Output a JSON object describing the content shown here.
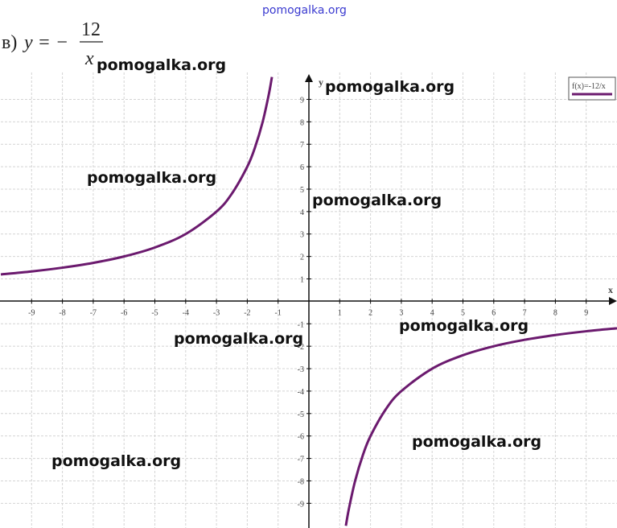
{
  "chart_data": {
    "type": "line",
    "title_prefix": "в)",
    "equation_lhs": "y = −",
    "numerator": "12",
    "denominator": "x",
    "watermark": "pomogalka.org",
    "x_label": "x",
    "y_label": "y",
    "x": [
      -10,
      -9,
      -8,
      -7,
      -6,
      -5,
      -4,
      -3,
      -2.5,
      -2,
      -1.75,
      -1.5,
      -1.3,
      -1.2,
      0,
      1.2,
      1.3,
      1.5,
      1.75,
      2,
      2.5,
      3,
      4,
      5,
      6,
      7,
      8,
      9,
      10
    ],
    "series": [
      {
        "name": "f(x)=-12/x",
        "color": "#6b1a6e",
        "values": [
          1.2,
          1.333,
          1.5,
          1.714,
          2,
          2.4,
          3,
          4,
          4.8,
          6,
          6.857,
          8,
          9.231,
          10,
          null,
          -10,
          -9.231,
          -8,
          -6.857,
          -6,
          -4.8,
          -4,
          -3,
          -2.4,
          -2,
          -1.714,
          -1.5,
          -1.333,
          -1.2
        ]
      }
    ],
    "xlim": [
      -10,
      10
    ],
    "ylim": [
      -10.1,
      10.2
    ],
    "xticks": [
      -9,
      -8,
      -7,
      -6,
      -5,
      -4,
      -3,
      -2,
      -1,
      1,
      2,
      3,
      4,
      5,
      6,
      7,
      8,
      9
    ],
    "yticks": [
      -9,
      -8,
      -7,
      -6,
      -5,
      -4,
      -3,
      -2,
      -1,
      1,
      2,
      3,
      4,
      5,
      6,
      7,
      8,
      9
    ],
    "grid": true
  }
}
